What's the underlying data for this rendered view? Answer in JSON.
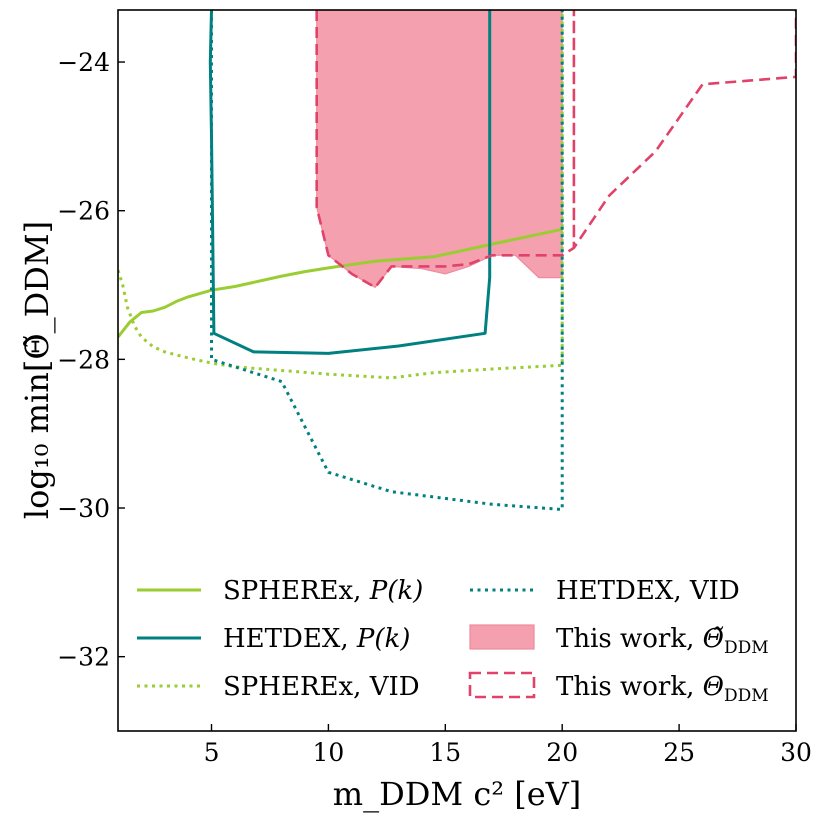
{
  "chart_data": {
    "type": "line",
    "title": "",
    "xlabel": "m_DDM c² [eV]",
    "ylabel": "log₁₀ min[Θ̃_DDM]",
    "xlim": [
      1,
      30
    ],
    "ylim": [
      -33,
      -23.3
    ],
    "xticks": [
      5,
      10,
      15,
      20,
      25,
      30
    ],
    "yticks": [
      -32,
      -30,
      -28,
      -26,
      -24
    ],
    "xtick_labels": [
      "5",
      "10",
      "15",
      "20",
      "25",
      "30"
    ],
    "ytick_labels": [
      "−32",
      "−30",
      "−28",
      "−26",
      "−24"
    ],
    "legend_position": "lower-center",
    "series": [
      {
        "name": "SPHEREx, P(k)",
        "legend_main": "SPHEREx, ",
        "legend_math": "P(k)",
        "color": "#9acd32",
        "style": "solid",
        "x": [
          1.0,
          1.5,
          2.0,
          2.5,
          3.0,
          3.5,
          4.0,
          5.0,
          6.0,
          7.0,
          8.0,
          9.0,
          10.0,
          12.0,
          14.5,
          17.0,
          20.0
        ],
        "y": [
          -27.7,
          -27.5,
          -27.37,
          -27.35,
          -27.3,
          -27.22,
          -27.16,
          -27.07,
          -27.02,
          -26.95,
          -26.88,
          -26.82,
          -26.77,
          -26.68,
          -26.62,
          -26.45,
          -26.25
        ]
      },
      {
        "name": "HETDEX, P(k)",
        "legend_main": "HETDEX, ",
        "legend_math": "P(k)",
        "color": "#008080",
        "style": "solid",
        "x": [
          5.0,
          4.95,
          5.0,
          5.1,
          6.8,
          10.0,
          13.0,
          16.7,
          16.9,
          16.9
        ],
        "y": [
          -23.3,
          -24.0,
          -25.0,
          -27.65,
          -27.9,
          -27.92,
          -27.82,
          -27.65,
          -26.9,
          -23.3
        ]
      },
      {
        "name": "SPHEREx, VID",
        "legend_main": "SPHEREx, VID",
        "legend_math": "",
        "color": "#9acd32",
        "style": "dotted",
        "x": [
          1.0,
          1.2,
          1.4,
          1.7,
          2.0,
          2.5,
          3.0,
          4.0,
          5.0,
          6.0,
          8.0,
          10.0,
          12.7,
          14.5,
          17.0,
          20.0,
          20.0
        ],
        "y": [
          -26.8,
          -27.0,
          -27.3,
          -27.55,
          -27.7,
          -27.83,
          -27.9,
          -27.98,
          -28.05,
          -28.1,
          -28.15,
          -28.2,
          -28.25,
          -28.18,
          -28.13,
          -28.08,
          -23.3
        ]
      },
      {
        "name": "HETDEX, VID",
        "legend_main": "HETDEX, VID",
        "legend_math": "",
        "color": "#008080",
        "style": "dotted",
        "x": [
          5.0,
          5.0,
          5.0,
          5.0,
          8.0,
          10.0,
          12.7,
          17.0,
          20.0,
          20.0
        ],
        "y": [
          -23.3,
          -25.0,
          -27.6,
          -28.0,
          -28.3,
          -29.52,
          -29.78,
          -29.95,
          -30.02,
          -23.3
        ]
      },
      {
        "name": "This work, Θ̃_DDM",
        "legend_main": "This work, ",
        "legend_math": "Θ̃",
        "legend_sub": "DDM",
        "color": "#f4a0ae",
        "edge_color": "#ee8a9d",
        "style": "fill",
        "x": [
          9.5,
          9.5,
          10.0,
          11.0,
          12.0,
          12.7,
          14.0,
          15.0,
          16.0,
          17.0,
          18.0,
          19.0,
          20.0,
          20.0
        ],
        "y": [
          -23.3,
          -25.95,
          -26.6,
          -26.85,
          -27.03,
          -26.75,
          -26.78,
          -26.85,
          -26.75,
          -26.6,
          -26.6,
          -26.9,
          -26.9,
          -23.3
        ]
      },
      {
        "name": "This work, Θ_DDM",
        "legend_main": "This work, ",
        "legend_math": "Θ",
        "legend_sub": "DDM",
        "color": "#e0426a",
        "style": "dashed",
        "x": [
          9.5,
          9.5,
          10.0,
          11.0,
          12.0,
          12.7,
          14.0,
          15.0,
          16.0,
          17.0,
          18.0,
          19.0,
          20.0,
          20.5,
          20.5,
          20.5,
          22.0,
          24.0,
          26.0,
          28.0,
          30.0,
          30.0
        ],
        "y": [
          -23.3,
          -25.95,
          -26.6,
          -26.85,
          -27.03,
          -26.75,
          -26.75,
          -26.75,
          -26.72,
          -26.6,
          -26.6,
          -26.6,
          -26.6,
          -26.5,
          -23.3,
          -26.5,
          -25.8,
          -25.2,
          -24.3,
          -24.25,
          -24.2,
          -23.3
        ]
      }
    ]
  }
}
